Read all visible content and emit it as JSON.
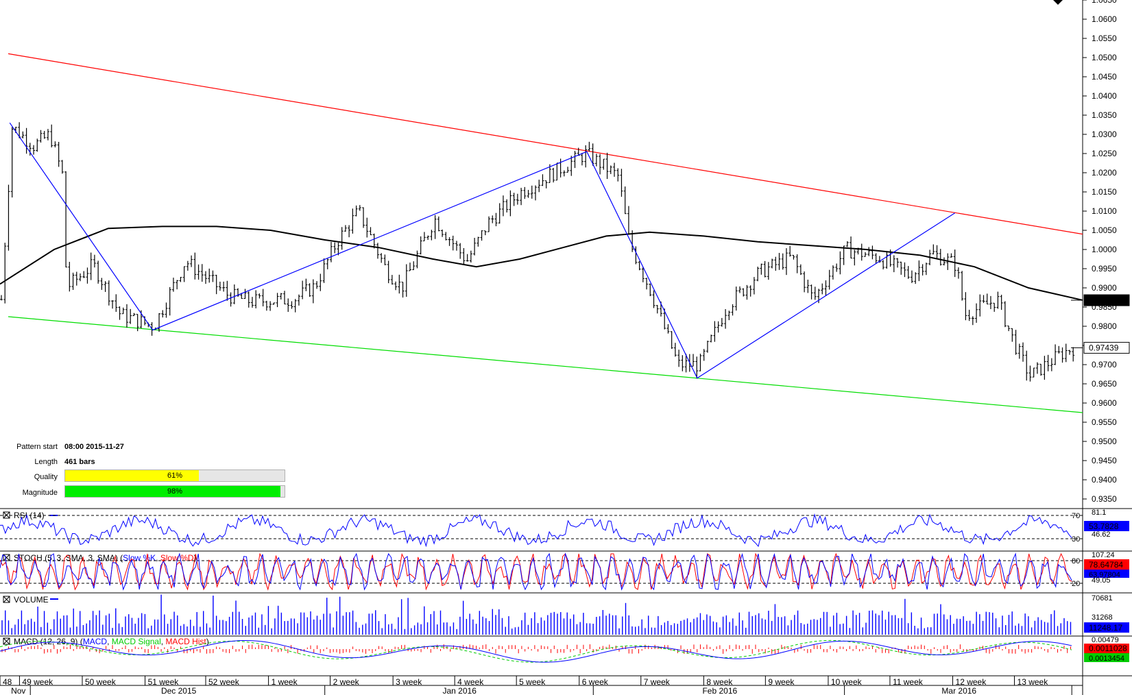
{
  "chart_data": {
    "type": "candlestick",
    "price_axis": {
      "range": [
        0.9325,
        1.065
      ],
      "ticks": [
        "1.0650",
        "1.0600",
        "1.0550",
        "1.0500",
        "1.0450",
        "1.0400",
        "1.0350",
        "1.0300",
        "1.0250",
        "1.0200",
        "1.0150",
        "1.0100",
        "1.0050",
        "1.0000",
        "0.9950",
        "0.9900",
        "0.9850",
        "0.9800",
        "0.9750",
        "0.9700",
        "0.9650",
        "0.9600",
        "0.9550",
        "0.9500",
        "0.9450",
        "0.9400",
        "0.9350"
      ]
    },
    "price_markers": [
      {
        "label": "0.98678",
        "value": 0.98678,
        "style": "dark"
      },
      {
        "label": "0.97439",
        "value": 0.97439,
        "style": "light"
      }
    ],
    "week_labels": [
      "48",
      "49 week",
      "50 week",
      "51 week",
      "52 week",
      "1 week",
      "2 week",
      "3 week",
      "4 week",
      "5 week",
      "6 week",
      "7 week",
      "8 week",
      "9 week",
      "10 week",
      "11 week",
      "12 week",
      "13 week"
    ],
    "month_labels": [
      "Nov",
      "Dec 2015",
      "Jan 2016",
      "Feb 2016",
      "Mar 2016"
    ],
    "channel": {
      "upper": [
        [
          0,
          1.051
        ],
        [
          1.0,
          1.004
        ]
      ],
      "lower": [
        [
          0,
          0.9825
        ],
        [
          1.0,
          0.9575
        ]
      ]
    },
    "pattern_swings": [
      [
        0.009,
        1.033
      ],
      [
        0.141,
        0.979
      ],
      [
        0.542,
        1.0255
      ],
      [
        0.644,
        0.9665
      ],
      [
        0.882,
        1.0095
      ]
    ],
    "moving_average": [
      [
        0,
        0.991
      ],
      [
        0.05,
        1.0
      ],
      [
        0.1,
        1.0055
      ],
      [
        0.15,
        1.006
      ],
      [
        0.2,
        1.006
      ],
      [
        0.25,
        1.005
      ],
      [
        0.3,
        1.0025
      ],
      [
        0.35,
        1.0005
      ],
      [
        0.4,
        0.9975
      ],
      [
        0.44,
        0.9955
      ],
      [
        0.48,
        0.9975
      ],
      [
        0.52,
        1.0005
      ],
      [
        0.56,
        1.0035
      ],
      [
        0.6,
        1.0045
      ],
      [
        0.65,
        1.0035
      ],
      [
        0.7,
        1.002
      ],
      [
        0.75,
        1.001
      ],
      [
        0.8,
        1.0
      ],
      [
        0.85,
        0.9985
      ],
      [
        0.9,
        0.9955
      ],
      [
        0.95,
        0.99
      ],
      [
        1.0,
        0.9868
      ]
    ],
    "candle_path": [
      [
        0,
        0.987
      ],
      [
        0.01,
        1.032
      ],
      [
        0.03,
        1.027
      ],
      [
        0.045,
        1.03
      ],
      [
        0.058,
        1.018
      ],
      [
        0.06,
        0.99
      ],
      [
        0.085,
        0.996
      ],
      [
        0.11,
        0.983
      ],
      [
        0.141,
        0.98
      ],
      [
        0.17,
        0.997
      ],
      [
        0.21,
        0.988
      ],
      [
        0.23,
        0.9865
      ],
      [
        0.27,
        0.987
      ],
      [
        0.29,
        0.9905
      ],
      [
        0.31,
        1.002
      ],
      [
        0.33,
        1.01
      ],
      [
        0.355,
        0.995
      ],
      [
        0.37,
        0.99
      ],
      [
        0.4,
        1.008
      ],
      [
        0.43,
        0.997
      ],
      [
        0.45,
        1.007
      ],
      [
        0.48,
        1.015
      ],
      [
        0.51,
        1.02
      ],
      [
        0.54,
        1.025
      ],
      [
        0.57,
        1.019
      ],
      [
        0.58,
        1.002
      ],
      [
        0.6,
        0.989
      ],
      [
        0.625,
        0.97
      ],
      [
        0.645,
        0.97
      ],
      [
        0.67,
        0.985
      ],
      [
        0.7,
        0.994
      ],
      [
        0.73,
        0.998
      ],
      [
        0.75,
        0.987
      ],
      [
        0.78,
        1.0
      ],
      [
        0.81,
        0.998
      ],
      [
        0.84,
        0.993
      ],
      [
        0.86,
        0.999
      ],
      [
        0.882,
        0.996
      ],
      [
        0.89,
        0.983
      ],
      [
        0.92,
        0.987
      ],
      [
        0.935,
        0.976
      ],
      [
        0.95,
        0.967
      ],
      [
        0.98,
        0.973
      ],
      [
        0.99,
        0.9744
      ]
    ],
    "pattern_info": {
      "start_label": "Pattern start",
      "start_value": "08:00 2015-11-27",
      "length_label": "Length",
      "length_value": "461 bars",
      "quality_label": "Quality",
      "quality_pct": 61,
      "quality_text": "61%",
      "magnitude_label": "Magnitude",
      "magnitude_pct": 98,
      "magnitude_text": "98%"
    },
    "indicators": {
      "rsi": {
        "label": "RSI (14)",
        "levels": [
          "70",
          "30"
        ],
        "scale_top": "81.1",
        "scale_mid": "46.62",
        "value": "53.7828"
      },
      "stoch": {
        "label": "STOCH (5, 3, SMA, 3, SMA)",
        "k_label": "Slow %K",
        "d_label": "Slow %D",
        "levels": [
          "80",
          "20"
        ],
        "scale_top": "107.24",
        "scale_mid": "49.05",
        "value_k": "78.64784",
        "value_d": "63.97804"
      },
      "volume": {
        "label": "VOLUME",
        "scale_top": "70681",
        "scale_mid": "31268",
        "value": "11248.17"
      },
      "macd": {
        "label": "MACD (12, 26, 9)",
        "macd_label": "MACD",
        "signal_label": "MACD Signal",
        "hist_label": "MACD Hist",
        "scale_top": "0.00479",
        "value_hist": "0.0011028",
        "value_signal": "0.0013454"
      }
    }
  },
  "colors": {
    "upper_channel": "#ff0000",
    "lower_channel": "#00dd00",
    "pattern": "#0000ff",
    "ma": "#000000",
    "quality_fill": "#ffff00",
    "magnitude_fill": "#00ee00",
    "stoch_k": "#0000ff",
    "stoch_d": "#ff0000",
    "macd": "#0000ff",
    "macd_signal": "#00cc00",
    "macd_hist": "#ff0000"
  }
}
